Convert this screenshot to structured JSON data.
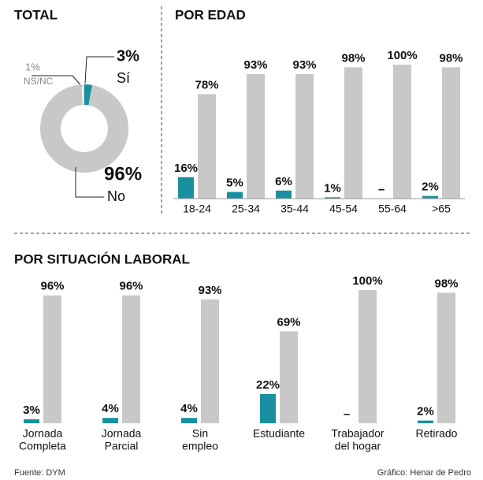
{
  "chart_data": [
    {
      "type": "pie",
      "title": "TOTAL",
      "categories": [
        "NS/NC",
        "Sí",
        "No"
      ],
      "values": [
        1,
        3,
        96
      ],
      "value_labels": [
        "1%",
        "3%",
        "96%"
      ],
      "colors": [
        "#ffffff",
        "#1a8fa0",
        "#c8c8c8"
      ]
    },
    {
      "type": "bar",
      "title": "POR EDAD",
      "categories": [
        "18-24",
        "25-34",
        "35-44",
        "45-54",
        "55-64",
        ">65"
      ],
      "ylim": [
        0,
        100
      ],
      "series": [
        {
          "color": "#1a8fa0",
          "values": [
            16,
            5,
            6,
            1,
            null,
            2
          ],
          "value_labels": [
            "16%",
            "5%",
            "6%",
            "1%",
            "–",
            "2%"
          ]
        },
        {
          "color": "#c8c8c8",
          "values": [
            78,
            93,
            93,
            98,
            100,
            98
          ],
          "value_labels": [
            "78%",
            "93%",
            "93%",
            "98%",
            "100%",
            "98%"
          ]
        }
      ]
    },
    {
      "type": "bar",
      "title": "POR SITUACIÓN LABORAL",
      "categories": [
        [
          "Jornada",
          "Completa"
        ],
        [
          "Jornada",
          "Parcial"
        ],
        [
          "Sin",
          "empleo"
        ],
        [
          "Estudiante"
        ],
        [
          "Trabajador",
          "del hogar"
        ],
        [
          "Retirado"
        ]
      ],
      "ylim": [
        0,
        100
      ],
      "series": [
        {
          "color": "#1a8fa0",
          "values": [
            3,
            4,
            4,
            22,
            null,
            2
          ],
          "value_labels": [
            "3%",
            "4%",
            "4%",
            "22%",
            "–",
            "2%"
          ]
        },
        {
          "color": "#c8c8c8",
          "values": [
            96,
            96,
            93,
            69,
            100,
            98
          ],
          "value_labels": [
            "96%",
            "96%",
            "93%",
            "69%",
            "100%",
            "98%"
          ]
        }
      ]
    }
  ],
  "source": "Fuente: DYM",
  "credit": "Gráfico: Henar de Pedro"
}
